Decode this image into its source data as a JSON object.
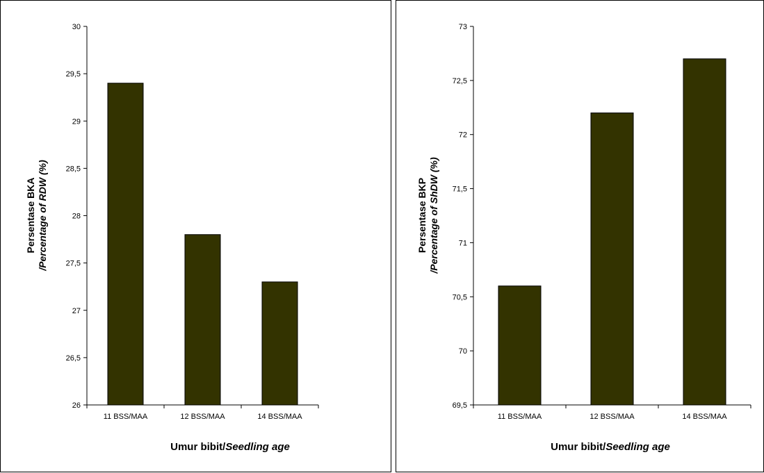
{
  "chart_data": [
    {
      "type": "bar",
      "categories": [
        "11 BSS/MAA",
        "12 BSS/MAA",
        "14 BSS/MAA"
      ],
      "values": [
        29.4,
        27.8,
        27.3
      ],
      "ylim": [
        26,
        30
      ],
      "yticks": [
        "26",
        "26,5",
        "27",
        "27,5",
        "28",
        "28,5",
        "29",
        "29,5",
        "30"
      ],
      "ylabel_line1": "Persentase BKA",
      "ylabel_line2": "/Percentage of RDW (%)",
      "xlabel_plain": "Umur bibit/",
      "xlabel_italic": "Seedling age",
      "bar_color": "#333300",
      "grid": false
    },
    {
      "type": "bar",
      "categories": [
        "11 BSS/MAA",
        "12 BSS/MAA",
        "14 BSS/MAA"
      ],
      "values": [
        70.6,
        72.2,
        72.7
      ],
      "ylim": [
        69.5,
        73
      ],
      "yticks": [
        "69,5",
        "70",
        "70,5",
        "71",
        "71,5",
        "72",
        "72,5",
        "73"
      ],
      "ylabel_line1": "Persentase BKP",
      "ylabel_line2": "/Percentage of ShDW (%)",
      "xlabel_plain": "Umur bibit/",
      "xlabel_italic": "Seedling age",
      "bar_color": "#333300",
      "grid": false
    }
  ]
}
